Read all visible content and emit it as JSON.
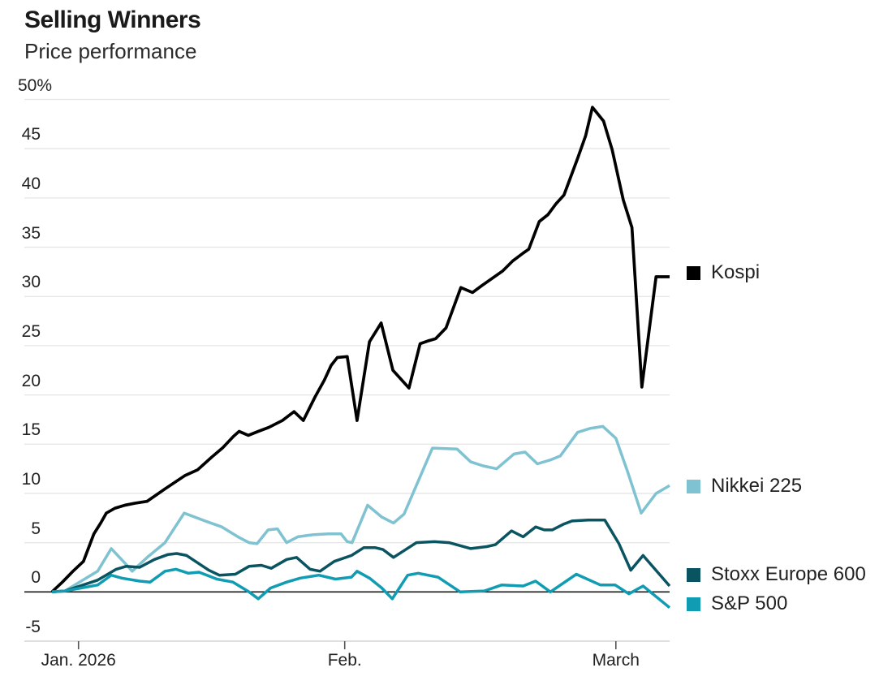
{
  "header": {
    "title": "Selling Winners",
    "subtitle": "Price performance"
  },
  "chart_data": {
    "type": "line",
    "title": "Selling Winners",
    "subtitle": "Price performance",
    "grid": "horizontal",
    "legend_position": "right",
    "y_axis": {
      "min": -5,
      "max": 50,
      "tick_step": 5,
      "tick_values": [
        -5,
        0,
        5,
        10,
        15,
        20,
        25,
        30,
        35,
        40,
        45,
        50
      ],
      "tick_labels": [
        "-5",
        "0",
        "5",
        "10",
        "15",
        "20",
        "25",
        "30",
        "35",
        "40",
        "45",
        "50%"
      ],
      "zero_baseline": true
    },
    "x_axis": {
      "ticks": [
        {
          "label": "Jan. 2026",
          "pos": 4.3
        },
        {
          "label": "Feb.",
          "pos": 47.4
        },
        {
          "label": "March",
          "pos": 91.3
        }
      ]
    },
    "series": [
      {
        "name": "Kospi",
        "color": "#000000",
        "points": [
          [
            0,
            0
          ],
          [
            1.7,
            1.0
          ],
          [
            3.4,
            2.1
          ],
          [
            5.1,
            3.1
          ],
          [
            6.8,
            5.9
          ],
          [
            7.9,
            7.0
          ],
          [
            8.8,
            8.0
          ],
          [
            10.2,
            8.5
          ],
          [
            11.8,
            8.8
          ],
          [
            13.4,
            9.0
          ],
          [
            15.4,
            9.2
          ],
          [
            18.4,
            10.5
          ],
          [
            21.5,
            11.8
          ],
          [
            23.6,
            12.4
          ],
          [
            25.9,
            13.7
          ],
          [
            27.6,
            14.6
          ],
          [
            29.4,
            15.8
          ],
          [
            30.3,
            16.3
          ],
          [
            31.8,
            15.9
          ],
          [
            33.4,
            16.3
          ],
          [
            35.1,
            16.7
          ],
          [
            37.3,
            17.4
          ],
          [
            39.2,
            18.3
          ],
          [
            40.7,
            17.4
          ],
          [
            42.6,
            19.8
          ],
          [
            44.1,
            21.5
          ],
          [
            45.2,
            23.0
          ],
          [
            46.2,
            23.8
          ],
          [
            47.8,
            23.9
          ],
          [
            49.4,
            17.4
          ],
          [
            51.4,
            25.4
          ],
          [
            53.3,
            27.3
          ],
          [
            55.2,
            22.5
          ],
          [
            57.8,
            20.7
          ],
          [
            59.6,
            25.2
          ],
          [
            61.0,
            25.5
          ],
          [
            62.1,
            25.7
          ],
          [
            63.8,
            26.8
          ],
          [
            66.2,
            30.9
          ],
          [
            68.1,
            30.4
          ],
          [
            69.6,
            31.1
          ],
          [
            71.2,
            31.8
          ],
          [
            73.0,
            32.6
          ],
          [
            74.6,
            33.6
          ],
          [
            76.3,
            34.4
          ],
          [
            77.2,
            34.8
          ],
          [
            78.9,
            37.6
          ],
          [
            80.3,
            38.3
          ],
          [
            81.6,
            39.4
          ],
          [
            82.9,
            40.3
          ],
          [
            85.1,
            44.0
          ],
          [
            86.4,
            46.3
          ],
          [
            87.5,
            49.2
          ],
          [
            89.3,
            47.8
          ],
          [
            90.7,
            44.9
          ],
          [
            92.5,
            39.8
          ],
          [
            93.9,
            37.0
          ],
          [
            95.5,
            20.8
          ],
          [
            97.8,
            32.0
          ],
          [
            100,
            32.0
          ]
        ]
      },
      {
        "name": "Nikkei 225",
        "color": "#7fc2d1",
        "points": [
          [
            0,
            0
          ],
          [
            2.1,
            0.1
          ],
          [
            7.4,
            2.1
          ],
          [
            9.6,
            4.4
          ],
          [
            12.0,
            2.8
          ],
          [
            13.0,
            2.1
          ],
          [
            15.6,
            3.6
          ],
          [
            18.3,
            5.0
          ],
          [
            21.4,
            8.0
          ],
          [
            24.8,
            7.2
          ],
          [
            27.5,
            6.6
          ],
          [
            30.1,
            5.6
          ],
          [
            31.9,
            5.0
          ],
          [
            33.2,
            4.9
          ],
          [
            35.0,
            6.3
          ],
          [
            36.5,
            6.4
          ],
          [
            38.0,
            5.0
          ],
          [
            39.8,
            5.6
          ],
          [
            42.2,
            5.8
          ],
          [
            44.8,
            5.9
          ],
          [
            46.8,
            5.9
          ],
          [
            47.8,
            5.1
          ],
          [
            48.6,
            5.0
          ],
          [
            51.1,
            8.8
          ],
          [
            53.4,
            7.6
          ],
          [
            55.3,
            7.0
          ],
          [
            57.0,
            7.9
          ],
          [
            61.6,
            14.6
          ],
          [
            65.6,
            14.5
          ],
          [
            67.8,
            13.2
          ],
          [
            69.8,
            12.8
          ],
          [
            72.0,
            12.5
          ],
          [
            74.8,
            14.0
          ],
          [
            76.6,
            14.2
          ],
          [
            78.6,
            13.0
          ],
          [
            80.7,
            13.4
          ],
          [
            82.3,
            13.8
          ],
          [
            85.1,
            16.2
          ],
          [
            87.1,
            16.6
          ],
          [
            89.2,
            16.8
          ],
          [
            91.3,
            15.6
          ],
          [
            93.2,
            12.2
          ],
          [
            95.4,
            8.0
          ],
          [
            97.8,
            10.0
          ],
          [
            100,
            10.8
          ]
        ]
      },
      {
        "name": "Stoxx Europe 600",
        "color": "#0a5462",
        "points": [
          [
            0,
            0
          ],
          [
            2.1,
            0.1
          ],
          [
            7.4,
            1.2
          ],
          [
            10.4,
            2.3
          ],
          [
            12.0,
            2.6
          ],
          [
            14.2,
            2.5
          ],
          [
            16.6,
            3.3
          ],
          [
            18.8,
            3.8
          ],
          [
            20.2,
            3.9
          ],
          [
            21.8,
            3.7
          ],
          [
            25.4,
            2.2
          ],
          [
            27.1,
            1.7
          ],
          [
            29.7,
            1.8
          ],
          [
            31.9,
            2.6
          ],
          [
            33.9,
            2.7
          ],
          [
            35.5,
            2.4
          ],
          [
            38.0,
            3.3
          ],
          [
            39.6,
            3.5
          ],
          [
            41.8,
            2.3
          ],
          [
            43.4,
            2.1
          ],
          [
            45.7,
            3.1
          ],
          [
            48.5,
            3.7
          ],
          [
            50.5,
            4.5
          ],
          [
            52.3,
            4.5
          ],
          [
            53.6,
            4.3
          ],
          [
            55.3,
            3.5
          ],
          [
            59.0,
            5.0
          ],
          [
            61.9,
            5.1
          ],
          [
            64.3,
            5.0
          ],
          [
            67.8,
            4.4
          ],
          [
            70.4,
            4.6
          ],
          [
            71.8,
            4.8
          ],
          [
            74.4,
            6.2
          ],
          [
            76.3,
            5.6
          ],
          [
            78.3,
            6.6
          ],
          [
            79.7,
            6.3
          ],
          [
            81.0,
            6.3
          ],
          [
            82.9,
            6.9
          ],
          [
            84.2,
            7.2
          ],
          [
            86.8,
            7.3
          ],
          [
            89.5,
            7.3
          ],
          [
            91.8,
            4.9
          ],
          [
            93.7,
            2.2
          ],
          [
            95.7,
            3.7
          ],
          [
            100,
            0.6
          ]
        ]
      },
      {
        "name": "S&P 500",
        "color": "#109cb3",
        "points": [
          [
            0,
            0
          ],
          [
            2.1,
            0.1
          ],
          [
            7.4,
            0.7
          ],
          [
            9.6,
            1.7
          ],
          [
            11.3,
            1.4
          ],
          [
            14.2,
            1.1
          ],
          [
            15.9,
            1.0
          ],
          [
            18.3,
            2.1
          ],
          [
            20.1,
            2.3
          ],
          [
            22.1,
            1.9
          ],
          [
            23.8,
            2.0
          ],
          [
            26.7,
            1.3
          ],
          [
            29.3,
            1.0
          ],
          [
            31.9,
            0.0
          ],
          [
            33.4,
            -0.7
          ],
          [
            35.4,
            0.4
          ],
          [
            38.0,
            1.0
          ],
          [
            40.2,
            1.4
          ],
          [
            43.2,
            1.7
          ],
          [
            45.9,
            1.3
          ],
          [
            48.5,
            1.5
          ],
          [
            49.4,
            2.1
          ],
          [
            51.4,
            1.4
          ],
          [
            53.4,
            0.4
          ],
          [
            55.1,
            -0.7
          ],
          [
            57.6,
            1.7
          ],
          [
            59.3,
            1.9
          ],
          [
            62.5,
            1.5
          ],
          [
            66.1,
            0.0
          ],
          [
            70.0,
            0.1
          ],
          [
            72.8,
            0.7
          ],
          [
            76.3,
            0.6
          ],
          [
            78.3,
            1.1
          ],
          [
            80.7,
            0.0
          ],
          [
            84.9,
            1.8
          ],
          [
            88.8,
            0.7
          ],
          [
            91.2,
            0.7
          ],
          [
            93.4,
            -0.2
          ],
          [
            95.7,
            0.6
          ],
          [
            100,
            -1.6
          ]
        ]
      }
    ],
    "colors": {
      "grid": "#e5e5e5",
      "zero_line": "#1a1a1a",
      "bottom_axis": "#c9c9c9",
      "tick_mark": "#555555",
      "label_text": "#222222"
    }
  }
}
